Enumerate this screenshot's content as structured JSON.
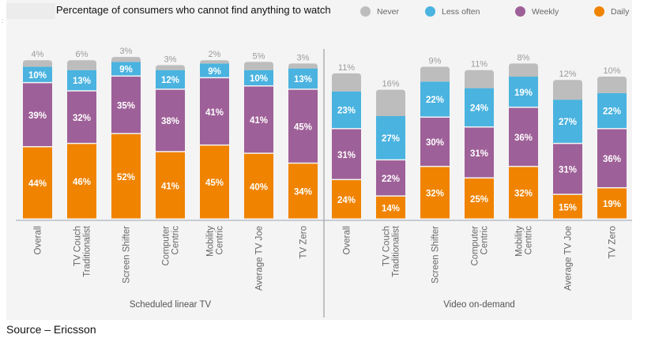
{
  "title": "Percentage of consumers who cannot find anything to watch",
  "source": "Source – Ericsson",
  "legend": [
    {
      "label": "Never",
      "color": "#bdbdbd"
    },
    {
      "label": "Less often",
      "color": "#4ab3e0"
    },
    {
      "label": "Weekly",
      "color": "#9e6098"
    },
    {
      "label": "Daily",
      "color": "#f08300"
    }
  ],
  "chart_data": {
    "type": "bar",
    "stacked": true,
    "title": "Percentage of consumers who cannot find anything to watch",
    "xlabel": "",
    "ylabel": "",
    "ylim": [
      0,
      100
    ],
    "grid": false,
    "legend_position": "top-right",
    "groups": [
      {
        "name": "Scheduled linear TV",
        "categories": [
          "Overall",
          "TV Couch Traditionalist",
          "Screen Shifter",
          "Computer Centric",
          "Mobility Centric",
          "Average TV Joe",
          "TV Zero"
        ],
        "category_lines": [
          [
            "Overall"
          ],
          [
            "TV Couch",
            "Traditionalist"
          ],
          [
            "Screen Shifter"
          ],
          [
            "Computer",
            "Centric"
          ],
          [
            "Mobility",
            "Centric"
          ],
          [
            "Average TV Joe"
          ],
          [
            "TV Zero"
          ]
        ],
        "series": [
          {
            "name": "Daily",
            "values": [
              44,
              46,
              52,
              41,
              45,
              40,
              34
            ]
          },
          {
            "name": "Weekly",
            "values": [
              39,
              32,
              35,
              38,
              41,
              41,
              45
            ]
          },
          {
            "name": "Less often",
            "values": [
              10,
              13,
              9,
              12,
              9,
              10,
              13
            ]
          },
          {
            "name": "Never",
            "values": [
              4,
              6,
              3,
              3,
              2,
              5,
              3
            ]
          }
        ]
      },
      {
        "name": "Video on-demand",
        "categories": [
          "Overall",
          "TV Couch Traditionalist",
          "Screen Shifter",
          "Computer Centric",
          "Mobility Centric",
          "Average TV Joe",
          "TV Zero"
        ],
        "category_lines": [
          [
            "Overall"
          ],
          [
            "TV Couch",
            "Traditionalist"
          ],
          [
            "Screen Shifter"
          ],
          [
            "Computer",
            "Centric"
          ],
          [
            "Mobility",
            "Centric"
          ],
          [
            "Average TV Joe"
          ],
          [
            "TV Zero"
          ]
        ],
        "series": [
          {
            "name": "Daily",
            "values": [
              24,
              14,
              32,
              25,
              32,
              15,
              19
            ]
          },
          {
            "name": "Weekly",
            "values": [
              31,
              22,
              30,
              31,
              36,
              31,
              36
            ]
          },
          {
            "name": "Less often",
            "values": [
              23,
              27,
              22,
              24,
              19,
              27,
              22
            ]
          },
          {
            "name": "Never",
            "values": [
              11,
              16,
              9,
              11,
              8,
              12,
              10
            ]
          }
        ]
      }
    ]
  }
}
